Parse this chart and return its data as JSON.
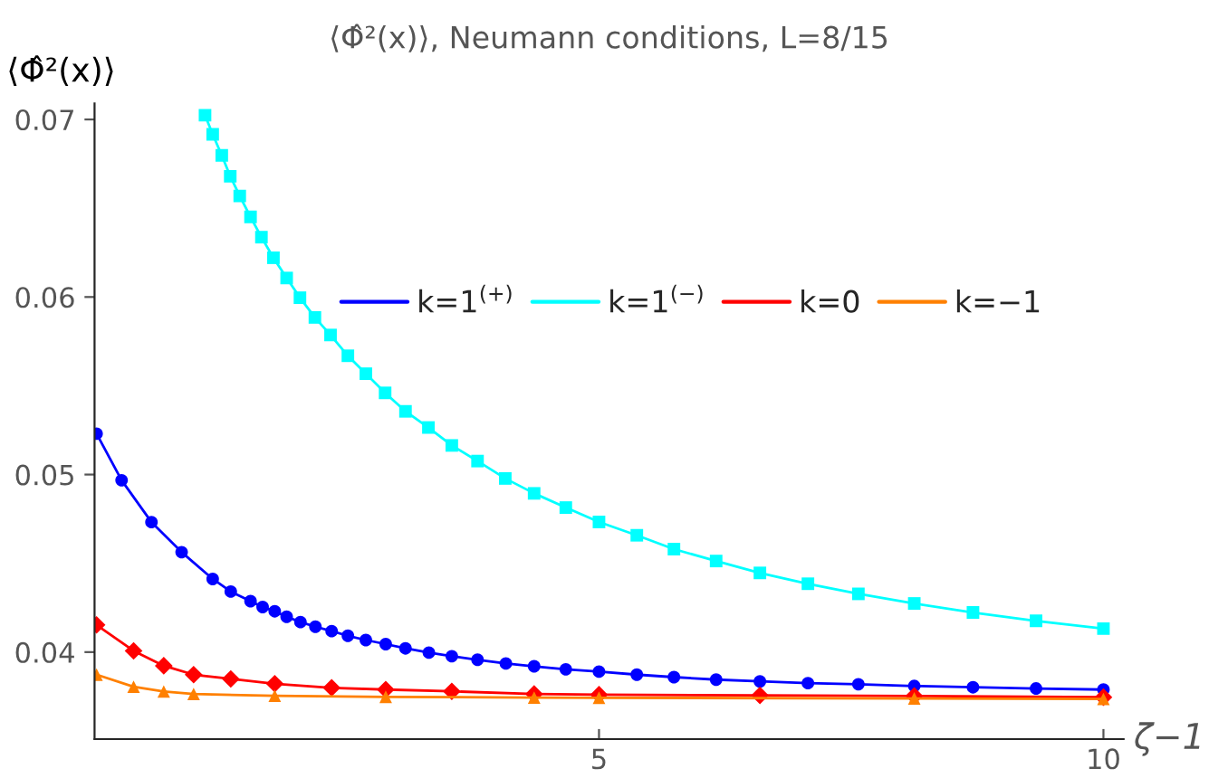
{
  "chart_data": {
    "type": "line",
    "title": "⟨Φ̂²(x)⟩, Neumann conditions, L=8/15",
    "ylabel": "⟨Φ̂²(x)⟩",
    "xlabel": "ζ−1",
    "xlim": [
      0,
      10.2
    ],
    "ylim": [
      0.0351,
      0.0709
    ],
    "xticks": [
      5,
      10
    ],
    "yticks": [
      0.04,
      0.05,
      0.06,
      0.07
    ],
    "grid": false,
    "legend": "top",
    "series": [
      {
        "name": "k=1$^{(+)}$",
        "color": "#0000ff",
        "marker": "circle",
        "x": [
          0.02,
          0.268,
          0.564,
          0.863,
          1.171,
          1.35,
          1.546,
          1.666,
          1.786,
          1.904,
          2.041,
          2.189,
          2.35,
          2.511,
          2.689,
          2.886,
          3.082,
          3.314,
          3.541,
          3.796,
          4.077,
          4.357,
          4.671,
          5.0,
          5.375,
          5.743,
          6.161,
          6.595,
          7.071,
          7.571,
          8.125,
          8.707,
          9.332,
          10.0
        ],
        "values": [
          0.0523,
          0.04968,
          0.04732,
          0.04563,
          0.04412,
          0.04341,
          0.04287,
          0.04254,
          0.0423,
          0.04199,
          0.04169,
          0.04143,
          0.04118,
          0.04092,
          0.04068,
          0.04045,
          0.04021,
          0.03997,
          0.03977,
          0.03957,
          0.03936,
          0.0392,
          0.03903,
          0.0389,
          0.03873,
          0.03859,
          0.03845,
          0.03835,
          0.03825,
          0.03819,
          0.03809,
          0.03802,
          0.03795,
          0.03789
        ]
      },
      {
        "name": "k=1$^{(−)}$",
        "color": "#00ffff",
        "marker": "square",
        "x": [
          1.095,
          1.171,
          1.261,
          1.345,
          1.439,
          1.546,
          1.654,
          1.773,
          1.904,
          2.036,
          2.184,
          2.339,
          2.511,
          2.689,
          2.88,
          3.082,
          3.309,
          3.541,
          3.796,
          4.071,
          4.357,
          4.671,
          5.0,
          5.375,
          5.743,
          6.161,
          6.595,
          7.071,
          7.571,
          8.125,
          8.707,
          9.332,
          10.0
        ],
        "values": [
          0.07024,
          0.06916,
          0.06798,
          0.0668,
          0.06569,
          0.06451,
          0.06337,
          0.06221,
          0.06107,
          0.05996,
          0.05885,
          0.05786,
          0.05669,
          0.05568,
          0.0546,
          0.05356,
          0.05265,
          0.05164,
          0.05076,
          0.04978,
          0.04894,
          0.04814,
          0.04733,
          0.04658,
          0.0458,
          0.04513,
          0.04446,
          0.04385,
          0.04328,
          0.04274,
          0.04223,
          0.04176,
          0.04132
        ]
      },
      {
        "name": "k=0",
        "color": "#ff0000",
        "marker": "diamond",
        "x": [
          0.02,
          0.387,
          0.686,
          0.982,
          1.35,
          1.786,
          2.35,
          2.886,
          3.541,
          4.357,
          5.0,
          6.595,
          8.125,
          10.0
        ],
        "values": [
          0.04153,
          0.04007,
          0.03923,
          0.03873,
          0.03849,
          0.03822,
          0.03799,
          0.03789,
          0.03779,
          0.03764,
          0.0376,
          0.03756,
          0.03753,
          0.03746
        ]
      },
      {
        "name": "k=−1",
        "color": "#ff8000",
        "marker": "triangle",
        "x": [
          0.02,
          0.387,
          0.686,
          0.982,
          1.786,
          2.886,
          4.357,
          5.0,
          8.125,
          10.0
        ],
        "values": [
          0.03873,
          0.03805,
          0.03778,
          0.03764,
          0.03754,
          0.03748,
          0.03744,
          0.03743,
          0.03739,
          0.03736
        ]
      }
    ]
  }
}
